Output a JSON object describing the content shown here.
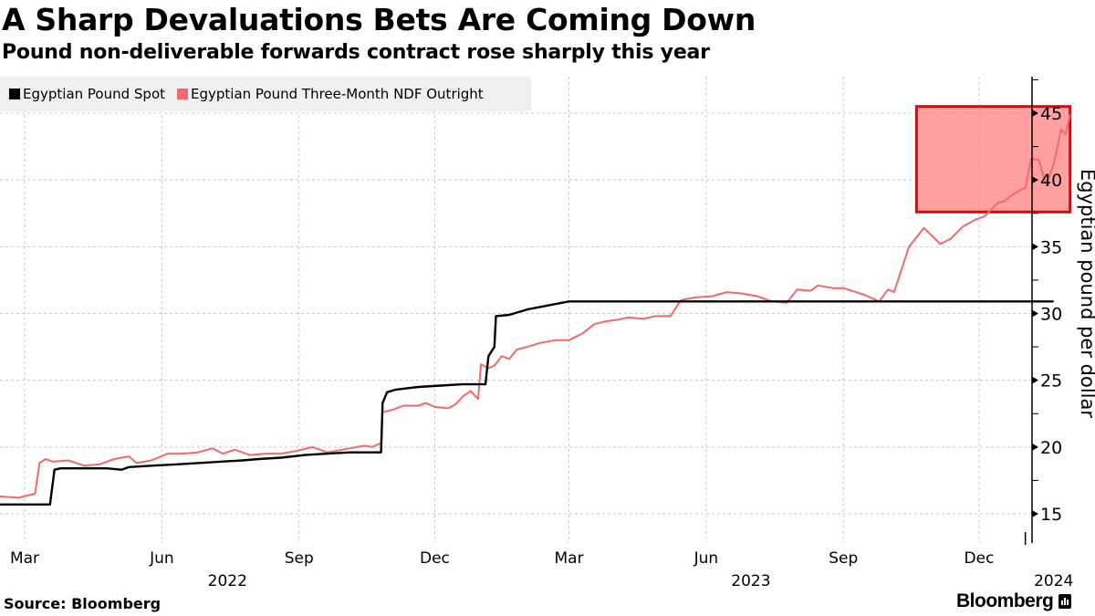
{
  "header": {
    "title": "A Sharp Devaluations Bets Are Coming Down",
    "subtitle": "Pound non-deliverable forwards contract rose sharply this year"
  },
  "footer": {
    "source": "Source: Bloomberg",
    "brand": "Bloomberg"
  },
  "colors": {
    "spot": "#000000",
    "ndf": "#f0696d",
    "highlight_fill": "#ff8080",
    "highlight_stroke": "#e8000b",
    "grid": "#c8c8c8",
    "legend_bg": "#f0f0f0"
  },
  "chart_data": {
    "type": "line",
    "title": "A Sharp Devaluations Bets Are Coming Down",
    "subtitle": "Pound non-deliverable forwards contract rose sharply this year",
    "xlabel": "",
    "ylabel": "Egyptian pound per dollar",
    "ylim": [
      13,
      48
    ],
    "xlim": [
      "2022-02-12",
      "2024-01-31"
    ],
    "yticks": [
      15,
      20,
      25,
      30,
      35,
      40,
      45
    ],
    "ytick_labels": [
      "15",
      "20",
      "25",
      "30",
      "35",
      "40",
      "45"
    ],
    "xticks": [
      {
        "date": "2022-03-01",
        "label": "Mar"
      },
      {
        "date": "2022-06-01",
        "label": "Jun"
      },
      {
        "date": "2022-09-01",
        "label": "Sep"
      },
      {
        "date": "2022-12-01",
        "label": "Dec"
      },
      {
        "date": "2023-03-01",
        "label": "Mar"
      },
      {
        "date": "2023-06-01",
        "label": "Jun"
      },
      {
        "date": "2023-09-01",
        "label": "Sep"
      },
      {
        "date": "2023-12-01",
        "label": "Dec"
      }
    ],
    "year_labels": [
      {
        "date": "2022-07-15",
        "label": "2022"
      },
      {
        "date": "2023-07-01",
        "label": "2023"
      },
      {
        "date": "2024-01-20",
        "label": "2024"
      }
    ],
    "grid": true,
    "legend_position": "top-left",
    "annotation": {
      "type": "highlight-box",
      "x_from": "2023-10-20",
      "x_to": "2024-01-31",
      "y_from": 37.6,
      "y_to": 45.5
    },
    "series": [
      {
        "name": "Egyptian Pound Spot",
        "color": "#000000",
        "points": [
          [
            "2022-02-12",
            15.7
          ],
          [
            "2022-03-18",
            15.7
          ],
          [
            "2022-03-21",
            18.3
          ],
          [
            "2022-03-25",
            18.4
          ],
          [
            "2022-04-10",
            18.4
          ],
          [
            "2022-04-25",
            18.4
          ],
          [
            "2022-05-05",
            18.3
          ],
          [
            "2022-05-10",
            18.5
          ],
          [
            "2022-05-25",
            18.6
          ],
          [
            "2022-06-10",
            18.7
          ],
          [
            "2022-06-25",
            18.8
          ],
          [
            "2022-07-10",
            18.9
          ],
          [
            "2022-07-25",
            19.0
          ],
          [
            "2022-08-05",
            19.1
          ],
          [
            "2022-08-20",
            19.2
          ],
          [
            "2022-09-05",
            19.4
          ],
          [
            "2022-09-20",
            19.5
          ],
          [
            "2022-10-05",
            19.6
          ],
          [
            "2022-10-26",
            19.6
          ],
          [
            "2022-10-27",
            23.3
          ],
          [
            "2022-10-30",
            24.1
          ],
          [
            "2022-11-05",
            24.3
          ],
          [
            "2022-11-20",
            24.5
          ],
          [
            "2022-12-05",
            24.6
          ],
          [
            "2022-12-20",
            24.7
          ],
          [
            "2023-01-01",
            24.7
          ],
          [
            "2023-01-04",
            24.7
          ],
          [
            "2023-01-06",
            26.8
          ],
          [
            "2023-01-10",
            27.5
          ],
          [
            "2023-01-11",
            29.8
          ],
          [
            "2023-01-20",
            29.9
          ],
          [
            "2023-02-01",
            30.3
          ],
          [
            "2023-02-15",
            30.6
          ],
          [
            "2023-03-01",
            30.9
          ],
          [
            "2023-04-01",
            30.9
          ],
          [
            "2023-05-01",
            30.9
          ],
          [
            "2023-06-01",
            30.9
          ],
          [
            "2023-07-01",
            30.9
          ],
          [
            "2023-08-01",
            30.9
          ],
          [
            "2023-09-01",
            30.9
          ],
          [
            "2023-10-01",
            30.9
          ],
          [
            "2023-11-01",
            30.9
          ],
          [
            "2023-12-01",
            30.9
          ],
          [
            "2024-01-01",
            30.9
          ],
          [
            "2024-01-20",
            30.9
          ]
        ]
      },
      {
        "name": "Egyptian Pound Three-Month NDF Outright",
        "color": "#f0696d",
        "points": [
          [
            "2022-02-12",
            16.3
          ],
          [
            "2022-02-25",
            16.2
          ],
          [
            "2022-03-08",
            16.5
          ],
          [
            "2022-03-11",
            18.8
          ],
          [
            "2022-03-15",
            19.1
          ],
          [
            "2022-03-20",
            18.9
          ],
          [
            "2022-03-30",
            19.0
          ],
          [
            "2022-04-10",
            18.6
          ],
          [
            "2022-04-20",
            18.7
          ],
          [
            "2022-04-30",
            19.1
          ],
          [
            "2022-05-10",
            19.3
          ],
          [
            "2022-05-15",
            18.8
          ],
          [
            "2022-05-25",
            19.0
          ],
          [
            "2022-06-05",
            19.5
          ],
          [
            "2022-06-15",
            19.5
          ],
          [
            "2022-06-25",
            19.6
          ],
          [
            "2022-07-05",
            19.9
          ],
          [
            "2022-07-12",
            19.5
          ],
          [
            "2022-07-20",
            19.8
          ],
          [
            "2022-07-30",
            19.4
          ],
          [
            "2022-08-10",
            19.5
          ],
          [
            "2022-08-20",
            19.5
          ],
          [
            "2022-08-30",
            19.7
          ],
          [
            "2022-09-10",
            20.0
          ],
          [
            "2022-09-20",
            19.6
          ],
          [
            "2022-09-30",
            19.8
          ],
          [
            "2022-10-05",
            19.9
          ],
          [
            "2022-10-15",
            20.1
          ],
          [
            "2022-10-20",
            20.0
          ],
          [
            "2022-10-26",
            20.3
          ],
          [
            "2022-10-27",
            22.6
          ],
          [
            "2022-11-03",
            22.8
          ],
          [
            "2022-11-10",
            23.1
          ],
          [
            "2022-11-20",
            23.1
          ],
          [
            "2022-11-25",
            23.3
          ],
          [
            "2022-12-01",
            23.0
          ],
          [
            "2022-12-10",
            22.9
          ],
          [
            "2022-12-15",
            23.2
          ],
          [
            "2022-12-20",
            23.8
          ],
          [
            "2022-12-25",
            24.2
          ],
          [
            "2022-12-30",
            23.6
          ],
          [
            "2023-01-01",
            26.2
          ],
          [
            "2023-01-06",
            25.9
          ],
          [
            "2023-01-10",
            26.1
          ],
          [
            "2023-01-15",
            26.8
          ],
          [
            "2023-01-20",
            26.6
          ],
          [
            "2023-01-25",
            27.3
          ],
          [
            "2023-02-01",
            27.5
          ],
          [
            "2023-02-10",
            27.8
          ],
          [
            "2023-02-20",
            28.0
          ],
          [
            "2023-03-01",
            28.0
          ],
          [
            "2023-03-10",
            28.5
          ],
          [
            "2023-03-18",
            29.2
          ],
          [
            "2023-03-25",
            29.4
          ],
          [
            "2023-04-01",
            29.5
          ],
          [
            "2023-04-10",
            29.7
          ],
          [
            "2023-04-20",
            29.6
          ],
          [
            "2023-04-28",
            29.8
          ],
          [
            "2023-05-08",
            29.8
          ],
          [
            "2023-05-15",
            31.0
          ],
          [
            "2023-05-25",
            31.2
          ],
          [
            "2023-06-05",
            31.3
          ],
          [
            "2023-06-15",
            31.6
          ],
          [
            "2023-06-25",
            31.5
          ],
          [
            "2023-07-05",
            31.3
          ],
          [
            "2023-07-15",
            30.9
          ],
          [
            "2023-07-25",
            30.8
          ],
          [
            "2023-08-01",
            31.8
          ],
          [
            "2023-08-10",
            31.7
          ],
          [
            "2023-08-15",
            32.1
          ],
          [
            "2023-08-25",
            31.9
          ],
          [
            "2023-09-01",
            31.9
          ],
          [
            "2023-09-15",
            31.4
          ],
          [
            "2023-09-25",
            30.9
          ],
          [
            "2023-10-01",
            31.8
          ],
          [
            "2023-10-05",
            31.6
          ],
          [
            "2023-10-15",
            35.0
          ],
          [
            "2023-10-25",
            36.4
          ],
          [
            "2023-11-05",
            35.2
          ],
          [
            "2023-11-12",
            35.6
          ],
          [
            "2023-11-20",
            36.5
          ],
          [
            "2023-11-28",
            37.0
          ],
          [
            "2023-12-05",
            37.3
          ],
          [
            "2023-12-10",
            37.9
          ],
          [
            "2023-12-14",
            38.3
          ],
          [
            "2023-12-18",
            38.4
          ],
          [
            "2023-12-22",
            38.8
          ],
          [
            "2023-12-28",
            39.2
          ],
          [
            "2024-01-01",
            39.4
          ],
          [
            "2024-01-05",
            41.6
          ],
          [
            "2024-01-10",
            41.5
          ],
          [
            "2024-01-15",
            39.6
          ],
          [
            "2024-01-20",
            41.2
          ],
          [
            "2024-01-25",
            43.8
          ],
          [
            "2024-01-28",
            43.4
          ],
          [
            "2024-01-31",
            44.9
          ]
        ]
      }
    ]
  }
}
